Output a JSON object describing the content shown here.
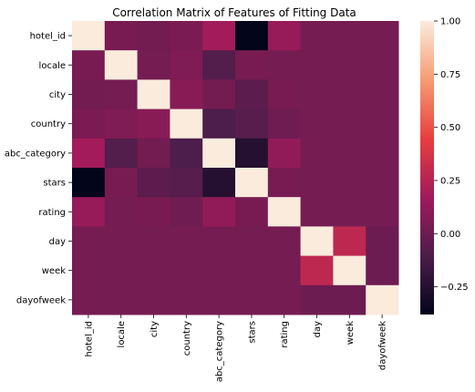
{
  "chart_data": {
    "type": "heatmap",
    "title": "Correlation Matrix of Features of Fitting Data",
    "xlabel": "",
    "ylabel": "",
    "labels": [
      "hotel_id",
      "locale",
      "city",
      "country",
      "abc_category",
      "stars",
      "rating",
      "day",
      "week",
      "dayofweek"
    ],
    "values": [
      [
        1.0,
        0.04,
        0.02,
        0.05,
        0.18,
        -0.38,
        0.14,
        0.03,
        0.03,
        0.03
      ],
      [
        0.04,
        1.0,
        0.03,
        0.06,
        -0.08,
        0.04,
        0.03,
        0.03,
        0.03,
        0.03
      ],
      [
        0.02,
        0.03,
        1.0,
        0.09,
        0.02,
        -0.05,
        0.04,
        0.03,
        0.03,
        0.03
      ],
      [
        0.05,
        0.06,
        0.09,
        1.0,
        -0.1,
        -0.07,
        0.01,
        0.03,
        0.03,
        0.03
      ],
      [
        0.18,
        -0.08,
        0.02,
        -0.1,
        1.0,
        -0.25,
        0.12,
        0.03,
        0.03,
        0.03
      ],
      [
        -0.38,
        0.04,
        -0.05,
        -0.07,
        -0.25,
        1.0,
        0.04,
        0.03,
        0.03,
        0.03
      ],
      [
        0.14,
        0.03,
        0.04,
        0.01,
        0.12,
        0.04,
        1.0,
        0.03,
        0.03,
        0.03
      ],
      [
        0.03,
        0.03,
        0.03,
        0.03,
        0.03,
        0.03,
        0.03,
        1.0,
        0.28,
        0.0
      ],
      [
        0.03,
        0.03,
        0.03,
        0.03,
        0.03,
        0.03,
        0.03,
        0.28,
        1.0,
        0.0
      ],
      [
        0.03,
        0.03,
        0.03,
        0.03,
        0.03,
        0.03,
        0.03,
        0.0,
        0.0,
        1.0
      ]
    ],
    "colorbar": {
      "min": -0.38,
      "max": 1.0,
      "ticks": [
        -0.25,
        0.0,
        0.25,
        0.5,
        0.75,
        1.0
      ],
      "tick_labels": [
        "−0.25",
        "0.00",
        "0.25",
        "0.50",
        "0.75",
        "1.00"
      ],
      "colormap": "rocket",
      "stops": [
        "#03051a",
        "#4c1d4b",
        "#a11a5b",
        "#e83f3f",
        "#f69c73",
        "#faebdd"
      ]
    }
  }
}
